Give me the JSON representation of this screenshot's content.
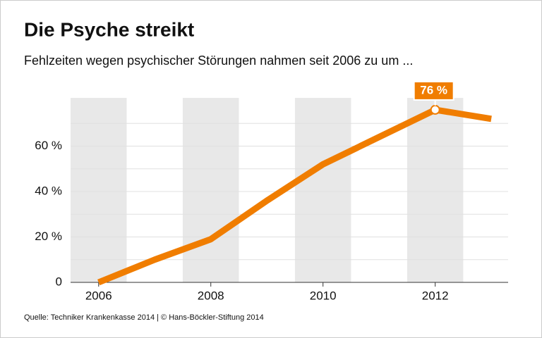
{
  "chart_data": {
    "type": "line",
    "title": "Die Psyche streikt",
    "subtitle": "Fehlzeiten wegen psychischer Störungen nahmen seit 2006 zu um ...",
    "source": "Quelle: Techniker Krankenkasse 2014 | © Hans-Böckler-Stiftung 2014",
    "x": [
      2006,
      2007,
      2008,
      2009,
      2010,
      2011,
      2012,
      2013
    ],
    "series": [
      {
        "color": "#f07d00",
        "values": [
          0,
          10,
          19,
          36,
          52,
          64,
          76,
          72
        ],
        "value_labels": [
          null,
          null,
          null,
          null,
          null,
          null,
          "76 %",
          null
        ]
      }
    ],
    "xlim": [
      2005.5,
      2013.3
    ],
    "xticks": [
      2006,
      2008,
      2010,
      2012
    ],
    "ylim": [
      0,
      80
    ],
    "yticks": [
      {
        "value": 0,
        "label": "0"
      },
      {
        "value": 20,
        "label": "20 %"
      },
      {
        "value": 40,
        "label": "40 %"
      },
      {
        "value": 60,
        "label": "60 %"
      }
    ],
    "minor_yticks": [
      10,
      30,
      50,
      70
    ],
    "grid": true,
    "band_color": "#e8e8e8"
  }
}
